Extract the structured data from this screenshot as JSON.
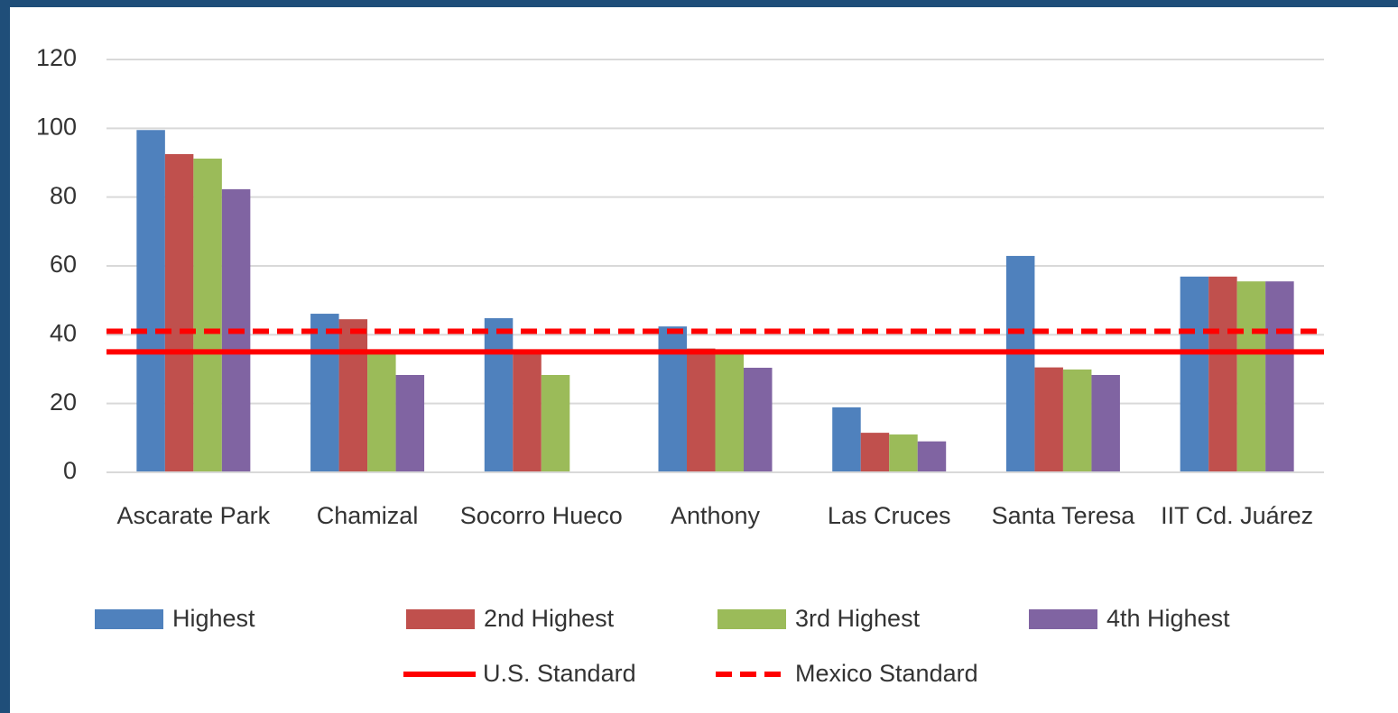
{
  "chart_data": {
    "type": "bar",
    "categories": [
      "Ascarate Park",
      "Chamizal",
      "Socorro Hueco",
      "Anthony",
      "Las Cruces",
      "Santa Teresa",
      "IIT Cd. Juárez"
    ],
    "series": [
      {
        "name": "Highest",
        "color": "#4f81bd",
        "values": [
          99.5,
          46.1,
          44.8,
          42.4,
          18.9,
          62.9,
          56.9
        ]
      },
      {
        "name": "2nd Highest",
        "color": "#c0504d",
        "values": [
          92.5,
          44.5,
          35,
          36,
          11.5,
          30.5,
          56.9
        ]
      },
      {
        "name": "3rd Highest",
        "color": "#9bbb59",
        "values": [
          91.2,
          35,
          28.3,
          35,
          11,
          29.9,
          55.5
        ]
      },
      {
        "name": "4th Highest",
        "color": "#8064a2",
        "values": [
          82.3,
          28.3,
          null,
          30.4,
          9,
          28.3,
          55.5
        ]
      }
    ],
    "standards": [
      {
        "name": "U.S. Standard",
        "color": "#ff0000",
        "value": 35,
        "style": "solid"
      },
      {
        "name": "Mexico Standard",
        "color": "#ff0000",
        "value": 41,
        "style": "dashed"
      }
    ],
    "ylim": [
      0,
      120
    ],
    "yticks": [
      0,
      20,
      40,
      60,
      80,
      100,
      120
    ],
    "grid": true,
    "legend": "bottom"
  }
}
